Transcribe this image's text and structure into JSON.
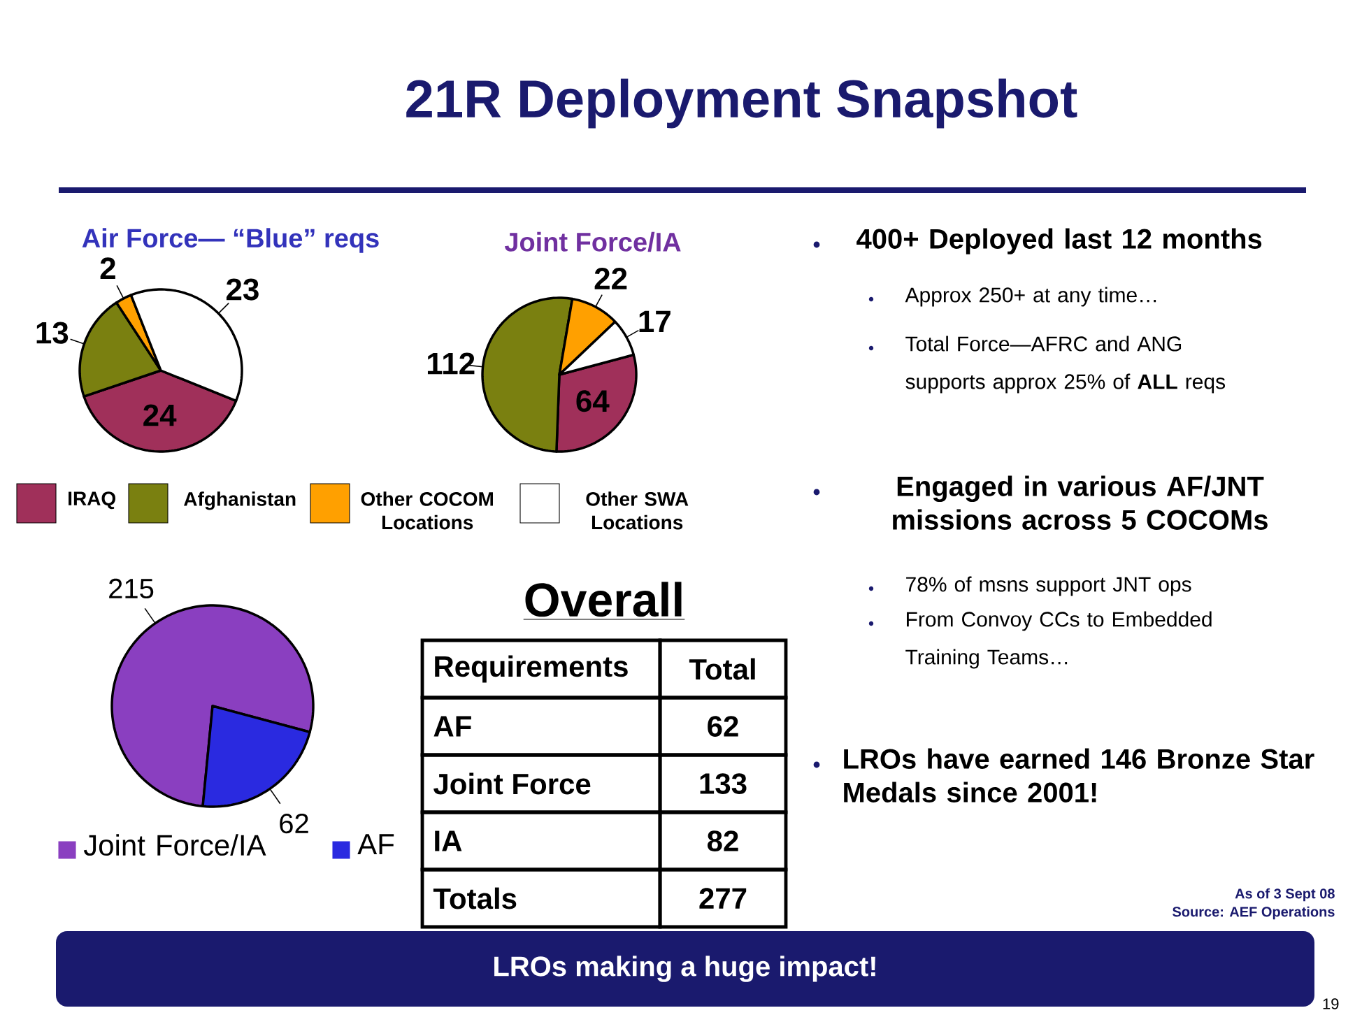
{
  "chart_data": [
    {
      "type": "pie",
      "title": "Air Force— “Blue” reqs",
      "categories": [
        "IRAQ",
        "Afghanistan",
        "Other COCOM Locations",
        "Other SWA Locations"
      ],
      "values": [
        24,
        13,
        2,
        23
      ],
      "colors": [
        "#a0305a",
        "#7a8010",
        "#ffa000",
        "#ffffff"
      ],
      "data_labels": true,
      "legend": "bottom"
    },
    {
      "type": "pie",
      "title": "Joint Force/IA",
      "categories": [
        null,
        null,
        null,
        null
      ],
      "values": [
        64,
        112,
        22,
        17
      ],
      "colors": [
        "#a0305a",
        "#7a8010",
        "#ffa000",
        "#ffffff"
      ],
      "data_labels": true
    },
    {
      "type": "pie",
      "categories": [
        "Joint Force/IA",
        "AF"
      ],
      "values": [
        215,
        62
      ],
      "colors": [
        "#8a3fc0",
        "#2a2ae0"
      ],
      "data_labels": true,
      "legend": "bottom"
    },
    {
      "type": "other",
      "title": "Overall",
      "annotations": [
        "Requirements",
        "Total",
        "AF",
        "62",
        "Joint Force",
        "133",
        "IA",
        "82",
        "Totals",
        "277"
      ]
    },
    {
      "type": "other",
      "title": "21R Deployment Snapshot",
      "annotations": [
        "400+ Deployed last 12 months",
        "Approx 250+ at any time…",
        "Total Force—AFRC and ANG supports approx 25% of **ALL** reqs",
        "Engaged in various AF/JNT missions across 5 COCOMs",
        "78% of msns support JNT ops",
        "From Convoy CCs to Embedded Training Teams…",
        "LROs have earned 146 Bronze Star Medals since 2001!",
        "As of 3 Sept 08",
        "Source:  AEF Operations",
        "LROs making a huge impact!",
        "19"
      ]
    }
  ]
}
